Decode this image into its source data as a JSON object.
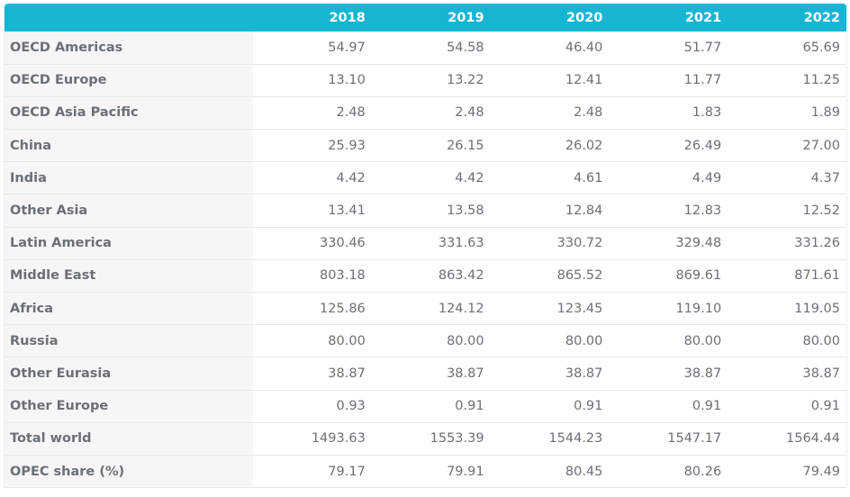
{
  "columns": [
    "",
    "2018",
    "2019",
    "2020",
    "2021",
    "2022"
  ],
  "rows": [
    {
      "label": "OECD Americas",
      "values": [
        "54.97",
        "54.58",
        "46.40",
        "51.77",
        "65.69"
      ]
    },
    {
      "label": "OECD Europe",
      "values": [
        "13.10",
        "13.22",
        "12.41",
        "11.77",
        "11.25"
      ]
    },
    {
      "label": "OECD Asia Pacific",
      "values": [
        "2.48",
        "2.48",
        "2.48",
        "1.83",
        "1.89"
      ]
    },
    {
      "label": "China",
      "values": [
        "25.93",
        "26.15",
        "26.02",
        "26.49",
        "27.00"
      ]
    },
    {
      "label": "India",
      "values": [
        "4.42",
        "4.42",
        "4.61",
        "4.49",
        "4.37"
      ]
    },
    {
      "label": "Other Asia",
      "values": [
        "13.41",
        "13.58",
        "12.84",
        "12.83",
        "12.52"
      ]
    },
    {
      "label": "Latin America",
      "values": [
        "330.46",
        "331.63",
        "330.72",
        "329.48",
        "331.26"
      ]
    },
    {
      "label": "Middle East",
      "values": [
        "803.18",
        "863.42",
        "865.52",
        "869.61",
        "871.61"
      ]
    },
    {
      "label": "Africa",
      "values": [
        "125.86",
        "124.12",
        "123.45",
        "119.10",
        "119.05"
      ]
    },
    {
      "label": "Russia",
      "values": [
        "80.00",
        "80.00",
        "80.00",
        "80.00",
        "80.00"
      ]
    },
    {
      "label": "Other Eurasia",
      "values": [
        "38.87",
        "38.87",
        "38.87",
        "38.87",
        "38.87"
      ]
    },
    {
      "label": "Other Europe",
      "values": [
        "0.93",
        "0.91",
        "0.91",
        "0.91",
        "0.91"
      ]
    },
    {
      "label": "Total world",
      "values": [
        "1493.63",
        "1553.39",
        "1544.23",
        "1547.17",
        "1564.44"
      ]
    },
    {
      "label": "OPEC share (%)",
      "values": [
        "79.17",
        "79.91",
        "80.45",
        "80.26",
        "79.49"
      ]
    }
  ],
  "colors": {
    "header_bg": "#18b5d3",
    "label_bg": "#f7f5f7",
    "text": "#6b6f78"
  }
}
